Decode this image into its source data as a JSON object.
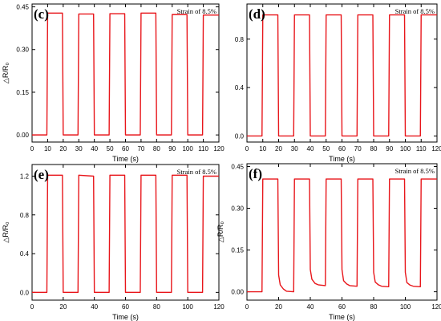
{
  "chart_data": [
    {
      "type": "line",
      "panel_label": "(c)",
      "annotation": "Strain of 8.5%",
      "xlabel": "Time (s)",
      "ylabel": "△R/R₀",
      "xlim": [
        0,
        120
      ],
      "ylim": [
        -0.025,
        0.46
      ],
      "xticks": [
        0,
        10,
        20,
        30,
        40,
        50,
        60,
        70,
        80,
        90,
        100,
        110,
        120
      ],
      "yticks": [
        0.0,
        0.15,
        0.3,
        0.45
      ],
      "ytick_labels": [
        "0.00",
        "0.15",
        "0.30",
        "0.45"
      ],
      "series": [
        {
          "color": "#e8161b",
          "x": [
            0,
            9.5,
            10,
            19.5,
            20,
            29.5,
            30,
            39.5,
            40,
            49.5,
            50,
            59.5,
            60,
            69.5,
            70,
            79.5,
            80,
            89.5,
            90,
            99.5,
            100,
            109.5,
            110,
            120
          ],
          "y": [
            0,
            0,
            0.428,
            0.428,
            0,
            0,
            0.425,
            0.425,
            0,
            0,
            0.426,
            0.426,
            0,
            0,
            0.428,
            0.428,
            0,
            0,
            0.423,
            0.423,
            0,
            0,
            0.421,
            0.421
          ]
        }
      ]
    },
    {
      "type": "line",
      "panel_label": "(d)",
      "annotation": "Strain of 8.5%",
      "xlabel": "Time (s)",
      "ylabel": "",
      "xlim": [
        0,
        120
      ],
      "ylim": [
        -0.05,
        1.09
      ],
      "xticks": [
        0,
        10,
        20,
        30,
        40,
        50,
        60,
        70,
        80,
        90,
        100,
        110,
        120
      ],
      "yticks": [
        0.0,
        0.4,
        0.8
      ],
      "ytick_labels": [
        "0.0",
        "0.4",
        "0.8"
      ],
      "series": [
        {
          "color": "#e8161b",
          "x": [
            0,
            9.5,
            10,
            19.5,
            20,
            29.5,
            30,
            39.5,
            40,
            49.5,
            50,
            59.5,
            60,
            69.5,
            70,
            79.5,
            80,
            89.5,
            90,
            99.5,
            100,
            109.5,
            110,
            120
          ],
          "y": [
            0,
            0,
            1.0,
            1.0,
            0,
            0,
            1.0,
            1.0,
            0,
            0,
            1.0,
            1.0,
            0,
            0,
            1.0,
            1.0,
            0,
            0,
            1.0,
            1.0,
            0,
            0,
            1.0,
            1.0
          ]
        }
      ]
    },
    {
      "type": "line",
      "panel_label": "(e)",
      "annotation": "Strain of 8.5%",
      "xlabel": "Time (s)",
      "ylabel": "△R/R₀",
      "xlim": [
        0,
        120
      ],
      "ylim": [
        -0.08,
        1.32
      ],
      "xticks": [
        0,
        20,
        40,
        60,
        80,
        100,
        120
      ],
      "yticks": [
        0.0,
        0.4,
        0.8,
        1.2
      ],
      "ytick_labels": [
        "0.0",
        "0.4",
        "0.8",
        "1.2"
      ],
      "series": [
        {
          "color": "#e8161b",
          "x": [
            0,
            9.5,
            10,
            19.5,
            20,
            29.5,
            30,
            39.5,
            40,
            49.5,
            50,
            59.5,
            60,
            69.5,
            70,
            79.5,
            80,
            89.5,
            90,
            99.5,
            100,
            109.5,
            110,
            120
          ],
          "y": [
            0,
            0,
            1.21,
            1.21,
            0,
            0,
            1.21,
            1.2,
            0,
            0,
            1.21,
            1.21,
            0,
            0,
            1.21,
            1.21,
            0,
            0,
            1.21,
            1.21,
            0,
            0,
            1.2,
            1.2
          ]
        }
      ]
    },
    {
      "type": "line",
      "panel_label": "(f)",
      "annotation": "Strain of 8.5%",
      "xlabel": "Time (s)",
      "ylabel": "△R/R₀",
      "xlim": [
        0,
        120
      ],
      "ylim": [
        -0.03,
        0.46
      ],
      "xticks": [
        0,
        20,
        40,
        60,
        80,
        100,
        120
      ],
      "yticks": [
        0.0,
        0.15,
        0.3,
        0.45
      ],
      "ytick_labels": [
        "0.00",
        "0.15",
        "0.30",
        "0.45"
      ],
      "series": [
        {
          "color": "#e8161b",
          "x": [
            0,
            9.5,
            10,
            19.5,
            20,
            21,
            23,
            25,
            29.5,
            30,
            39.5,
            40,
            41,
            43,
            45,
            49.5,
            50,
            59.5,
            60,
            61,
            63,
            65,
            69.5,
            70,
            79.5,
            80,
            81,
            83,
            85,
            89.5,
            90,
            99.5,
            100,
            101,
            103,
            105,
            109.5,
            110,
            120
          ],
          "y": [
            0,
            0,
            0.405,
            0.405,
            0.06,
            0.025,
            0.01,
            0.002,
            0,
            0.405,
            0.405,
            0.08,
            0.045,
            0.03,
            0.025,
            0.022,
            0.405,
            0.405,
            0.08,
            0.04,
            0.028,
            0.022,
            0.02,
            0.405,
            0.405,
            0.07,
            0.035,
            0.025,
            0.02,
            0.018,
            0.405,
            0.405,
            0.07,
            0.033,
            0.024,
            0.02,
            0.018,
            0.405,
            0.405
          ]
        }
      ]
    }
  ]
}
